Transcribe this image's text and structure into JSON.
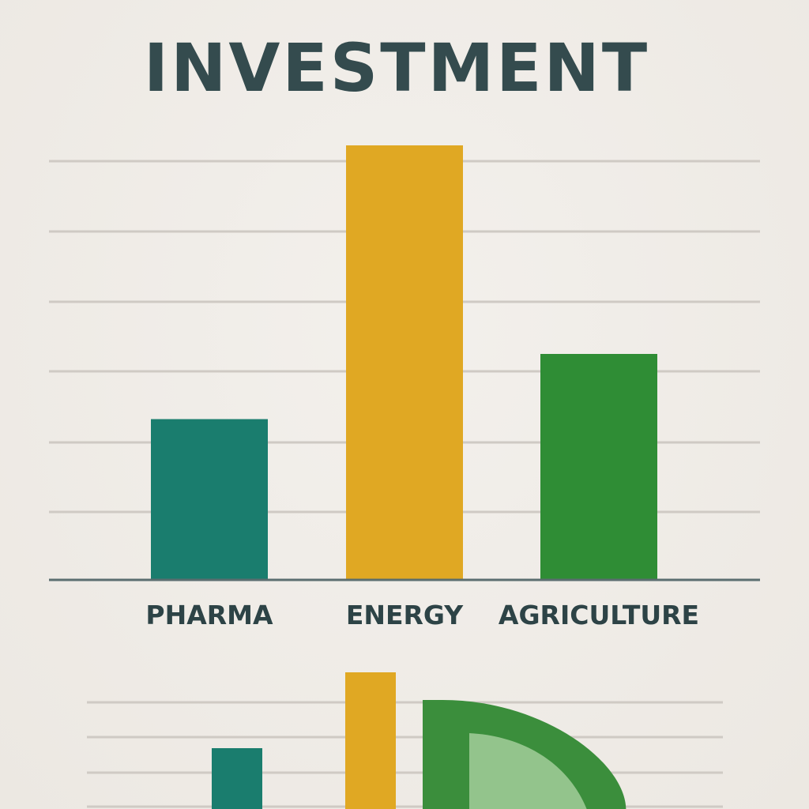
{
  "chart_data": {
    "type": "bar",
    "title": "INVESTMENT",
    "xlabel": "",
    "ylabel": "",
    "categories": [
      "PHARMA",
      "ENERGY",
      "AGRICULTURE"
    ],
    "values": [
      37,
      100,
      52
    ],
    "ylim": [
      0,
      100
    ],
    "grid": true,
    "legend": "none",
    "colors": {
      "PHARMA": "#1a7d6e",
      "ENERGY": "#e0a823",
      "AGRICULTURE": "#2f8d35",
      "axis": "#5b6e70",
      "grid": "#cfcac4",
      "text": "#2d4346"
    }
  },
  "decoration": {
    "bottom_icon": "bar-and-pie-chart-icon",
    "colors": [
      "#1a7d6e",
      "#e0a823",
      "#2f8d35",
      "#93c48c"
    ]
  }
}
